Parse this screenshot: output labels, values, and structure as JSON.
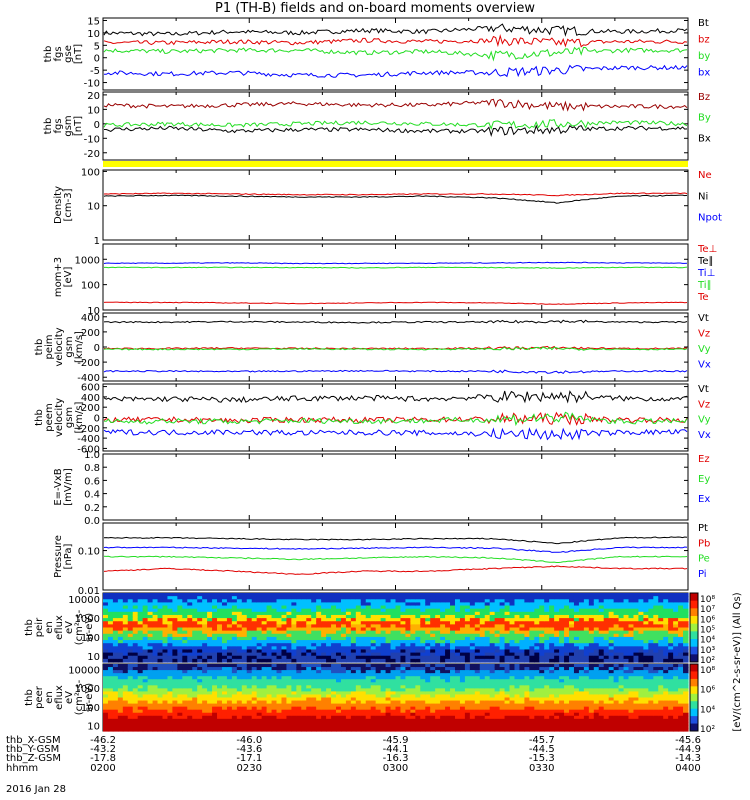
{
  "title": "P1 (TH-B) fields and on-board moments overview",
  "date_label": "2016 Jan 28",
  "colors": {
    "black": "#000000",
    "red": "#e00000",
    "green": "#22dd22",
    "blue": "#0000ff",
    "darkred": "#990000",
    "yellow": "#ffff00"
  },
  "chart_data": [
    {
      "type": "line",
      "ylabel_lines": [
        "thb",
        "fgs",
        "gse",
        "[nT]"
      ],
      "yticks": [
        "15",
        "10",
        "5",
        "0",
        "-5",
        "-10"
      ],
      "ylim": [
        -13,
        16
      ],
      "series": [
        {
          "name": "Bt",
          "color": "black",
          "values": [
            10,
            9.5,
            10.5,
            10,
            11,
            10.5,
            12,
            11,
            10.5,
            11
          ]
        },
        {
          "name": "bz",
          "color": "red",
          "values": [
            6,
            6,
            6.5,
            6,
            7,
            6.5,
            7,
            6,
            6.5,
            6.5
          ]
        },
        {
          "name": "by",
          "color": "green",
          "values": [
            3,
            2.5,
            3,
            3,
            2,
            2.5,
            1,
            2,
            3,
            3
          ]
        },
        {
          "name": "bx",
          "color": "blue",
          "values": [
            -6,
            -6.5,
            -6,
            -7,
            -7,
            -6,
            -6,
            -5,
            -4,
            -4
          ]
        }
      ]
    },
    {
      "type": "line",
      "ylabel_lines": [
        "thb",
        "fgs",
        "gsm",
        "[nT]"
      ],
      "yticks": [
        "20",
        "10",
        "0",
        "-10",
        "-20"
      ],
      "ylim": [
        -25,
        22
      ],
      "series": [
        {
          "name": "Bz",
          "color": "darkred",
          "values": [
            13,
            12,
            13,
            14,
            13,
            13,
            15,
            12,
            12,
            12
          ]
        },
        {
          "name": "By",
          "color": "green",
          "values": [
            -1,
            0,
            -1,
            0,
            1,
            0,
            -1,
            0,
            1,
            0
          ]
        },
        {
          "name": "Bx",
          "color": "black",
          "values": [
            -4,
            -3,
            -5,
            -4,
            -4,
            -5,
            -5,
            -4,
            -3,
            -3
          ]
        }
      ]
    },
    {
      "type": "line",
      "ylabel_lines": [
        "Density",
        "[cm-3]"
      ],
      "yticks": [
        "100",
        "10",
        "1"
      ],
      "ylog": true,
      "ylim": [
        1,
        110
      ],
      "series": [
        {
          "name": "Ne",
          "color": "red",
          "values": [
            22,
            23,
            22,
            21,
            21,
            22,
            22,
            20,
            23,
            23
          ]
        },
        {
          "name": "Ni",
          "color": "black",
          "values": [
            19,
            20,
            19,
            18,
            18,
            19,
            17,
            12,
            19,
            20
          ]
        },
        {
          "name": "Npot",
          "color": "blue",
          "values": []
        }
      ]
    },
    {
      "type": "line",
      "ylabel_lines": [
        "mom+3",
        "[eV]"
      ],
      "yticks": [
        "1000",
        "100",
        "10"
      ],
      "ylog": true,
      "ylim": [
        10,
        4000
      ],
      "series": [
        {
          "name": "Te⊥",
          "color": "red",
          "values": []
        },
        {
          "name": "Te∥",
          "color": "black",
          "values": []
        },
        {
          "name": "Ti⊥",
          "color": "blue",
          "values": [
            700,
            700,
            720,
            680,
            690,
            700,
            720,
            750,
            720,
            700
          ]
        },
        {
          "name": "Ti∥",
          "color": "green",
          "values": [
            480,
            470,
            480,
            470,
            460,
            480,
            470,
            450,
            480,
            480
          ]
        },
        {
          "name": "Te",
          "color": "red",
          "values": [
            20,
            20,
            19,
            18,
            19,
            20,
            19,
            17,
            19,
            20
          ]
        }
      ]
    },
    {
      "type": "line",
      "ylabel_lines": [
        "thb",
        "peim",
        "velocity",
        "gsm",
        "[km/s]"
      ],
      "yticks": [
        "400",
        "200",
        "0",
        "-200",
        "-400"
      ],
      "ylim": [
        -450,
        450
      ],
      "series": [
        {
          "name": "Vt",
          "color": "black",
          "values": [
            330,
            330,
            335,
            330,
            325,
            330,
            330,
            340,
            330,
            330
          ]
        },
        {
          "name": "Vz",
          "color": "red",
          "values": [
            -20,
            -20,
            -15,
            -20,
            -20,
            -20,
            -15,
            -10,
            -20,
            -20
          ]
        },
        {
          "name": "Vy",
          "color": "green",
          "values": [
            -30,
            -30,
            -30,
            -25,
            -30,
            -30,
            -25,
            -20,
            -30,
            -30
          ]
        },
        {
          "name": "Vx",
          "color": "blue",
          "values": [
            -320,
            -320,
            -325,
            -320,
            -315,
            -320,
            -320,
            -330,
            -320,
            -320
          ]
        }
      ]
    },
    {
      "type": "line",
      "ylabel_lines": [
        "thb",
        "peem",
        "velocity",
        "gsm",
        "[km/s]"
      ],
      "yticks": [
        "600",
        "400",
        "200",
        "0",
        "-200",
        "-400",
        "-600"
      ],
      "ylim": [
        -650,
        650
      ],
      "series": [
        {
          "name": "Vt",
          "color": "black",
          "values": [
            350,
            360,
            340,
            370,
            380,
            360,
            400,
            420,
            370,
            360
          ]
        },
        {
          "name": "Vz",
          "color": "red",
          "values": [
            -50,
            -40,
            -60,
            -40,
            -50,
            -40,
            -30,
            -20,
            -40,
            -50
          ]
        },
        {
          "name": "Vy",
          "color": "green",
          "values": [
            -80,
            -70,
            -80,
            -60,
            -70,
            -60,
            -40,
            0,
            -80,
            -70
          ]
        },
        {
          "name": "Vx",
          "color": "blue",
          "values": [
            -280,
            -290,
            -280,
            -300,
            -290,
            -300,
            -320,
            -330,
            -290,
            -280
          ]
        }
      ]
    },
    {
      "type": "line",
      "ylabel_lines": [
        "E=-VxB",
        "[mV/m]"
      ],
      "yticks": [
        "1.0",
        "0.8",
        "0.6",
        "0.4",
        "0.2",
        "0.0"
      ],
      "ylim": [
        0,
        1
      ],
      "series": [
        {
          "name": "Ez",
          "color": "red",
          "values": []
        },
        {
          "name": "Ey",
          "color": "green",
          "values": []
        },
        {
          "name": "Ex",
          "color": "blue",
          "values": []
        }
      ]
    },
    {
      "type": "line",
      "ylabel_lines": [
        "Pressure",
        "[nPa]"
      ],
      "yticks": [
        "0.10",
        "0.01"
      ],
      "ylog": true,
      "ylim": [
        0.01,
        0.5
      ],
      "series": [
        {
          "name": "Pt",
          "color": "black",
          "values": [
            0.21,
            0.21,
            0.2,
            0.19,
            0.19,
            0.2,
            0.2,
            0.15,
            0.21,
            0.22
          ]
        },
        {
          "name": "Pb",
          "color": "red",
          "values": [
            0.03,
            0.035,
            0.03,
            0.025,
            0.03,
            0.03,
            0.035,
            0.04,
            0.035,
            0.035
          ]
        },
        {
          "name": "Pe",
          "color": "green",
          "values": [
            0.07,
            0.07,
            0.065,
            0.06,
            0.065,
            0.07,
            0.065,
            0.05,
            0.07,
            0.07
          ]
        },
        {
          "name": "Pi",
          "color": "blue",
          "values": [
            0.12,
            0.12,
            0.115,
            0.11,
            0.115,
            0.12,
            0.115,
            0.09,
            0.12,
            0.12
          ]
        }
      ]
    },
    {
      "type": "heatmap",
      "ylabel_lines": [
        "thb",
        "peir",
        "en",
        "eflux",
        "eV",
        "(cm^2-s-",
        "sr-eV)"
      ],
      "yticks": [
        "10000",
        "1000",
        "100",
        "10"
      ],
      "ylog": true,
      "ylim": [
        5,
        20000
      ],
      "colorbar_ticks": [
        "10^8",
        "10^7",
        "10^6",
        "10^5",
        "10^4",
        "10^3",
        "10^2"
      ]
    },
    {
      "type": "heatmap",
      "ylabel_lines": [
        "thb",
        "peer",
        "en",
        "eflux",
        "eV",
        "(cm^2-s-",
        "sr-eV)"
      ],
      "yticks": [
        "10000",
        "1000",
        "100",
        "10"
      ],
      "ylog": true,
      "ylim": [
        5,
        20000
      ],
      "colorbar_ticks": [
        "10^8",
        "10^6",
        "10^4",
        "10^2"
      ]
    }
  ],
  "colorbar_label": "[eV/(cm^2-s-sr-eV)] (All Qs)",
  "x_axis": {
    "rows": [
      {
        "label": "thb_X-GSM",
        "values": [
          "-46.2",
          "-46.0",
          "-45.9",
          "-45.7",
          "-45.6"
        ]
      },
      {
        "label": "thb_Y-GSM",
        "values": [
          "-43.2",
          "-43.6",
          "-44.1",
          "-44.5",
          "-44.9"
        ]
      },
      {
        "label": "thb_Z-GSM",
        "values": [
          "-17.8",
          "-17.1",
          "-16.3",
          "-15.3",
          "-14.3"
        ]
      },
      {
        "label": "hhmm",
        "values": [
          "0200",
          "0230",
          "0300",
          "0330",
          "0400"
        ]
      }
    ]
  }
}
